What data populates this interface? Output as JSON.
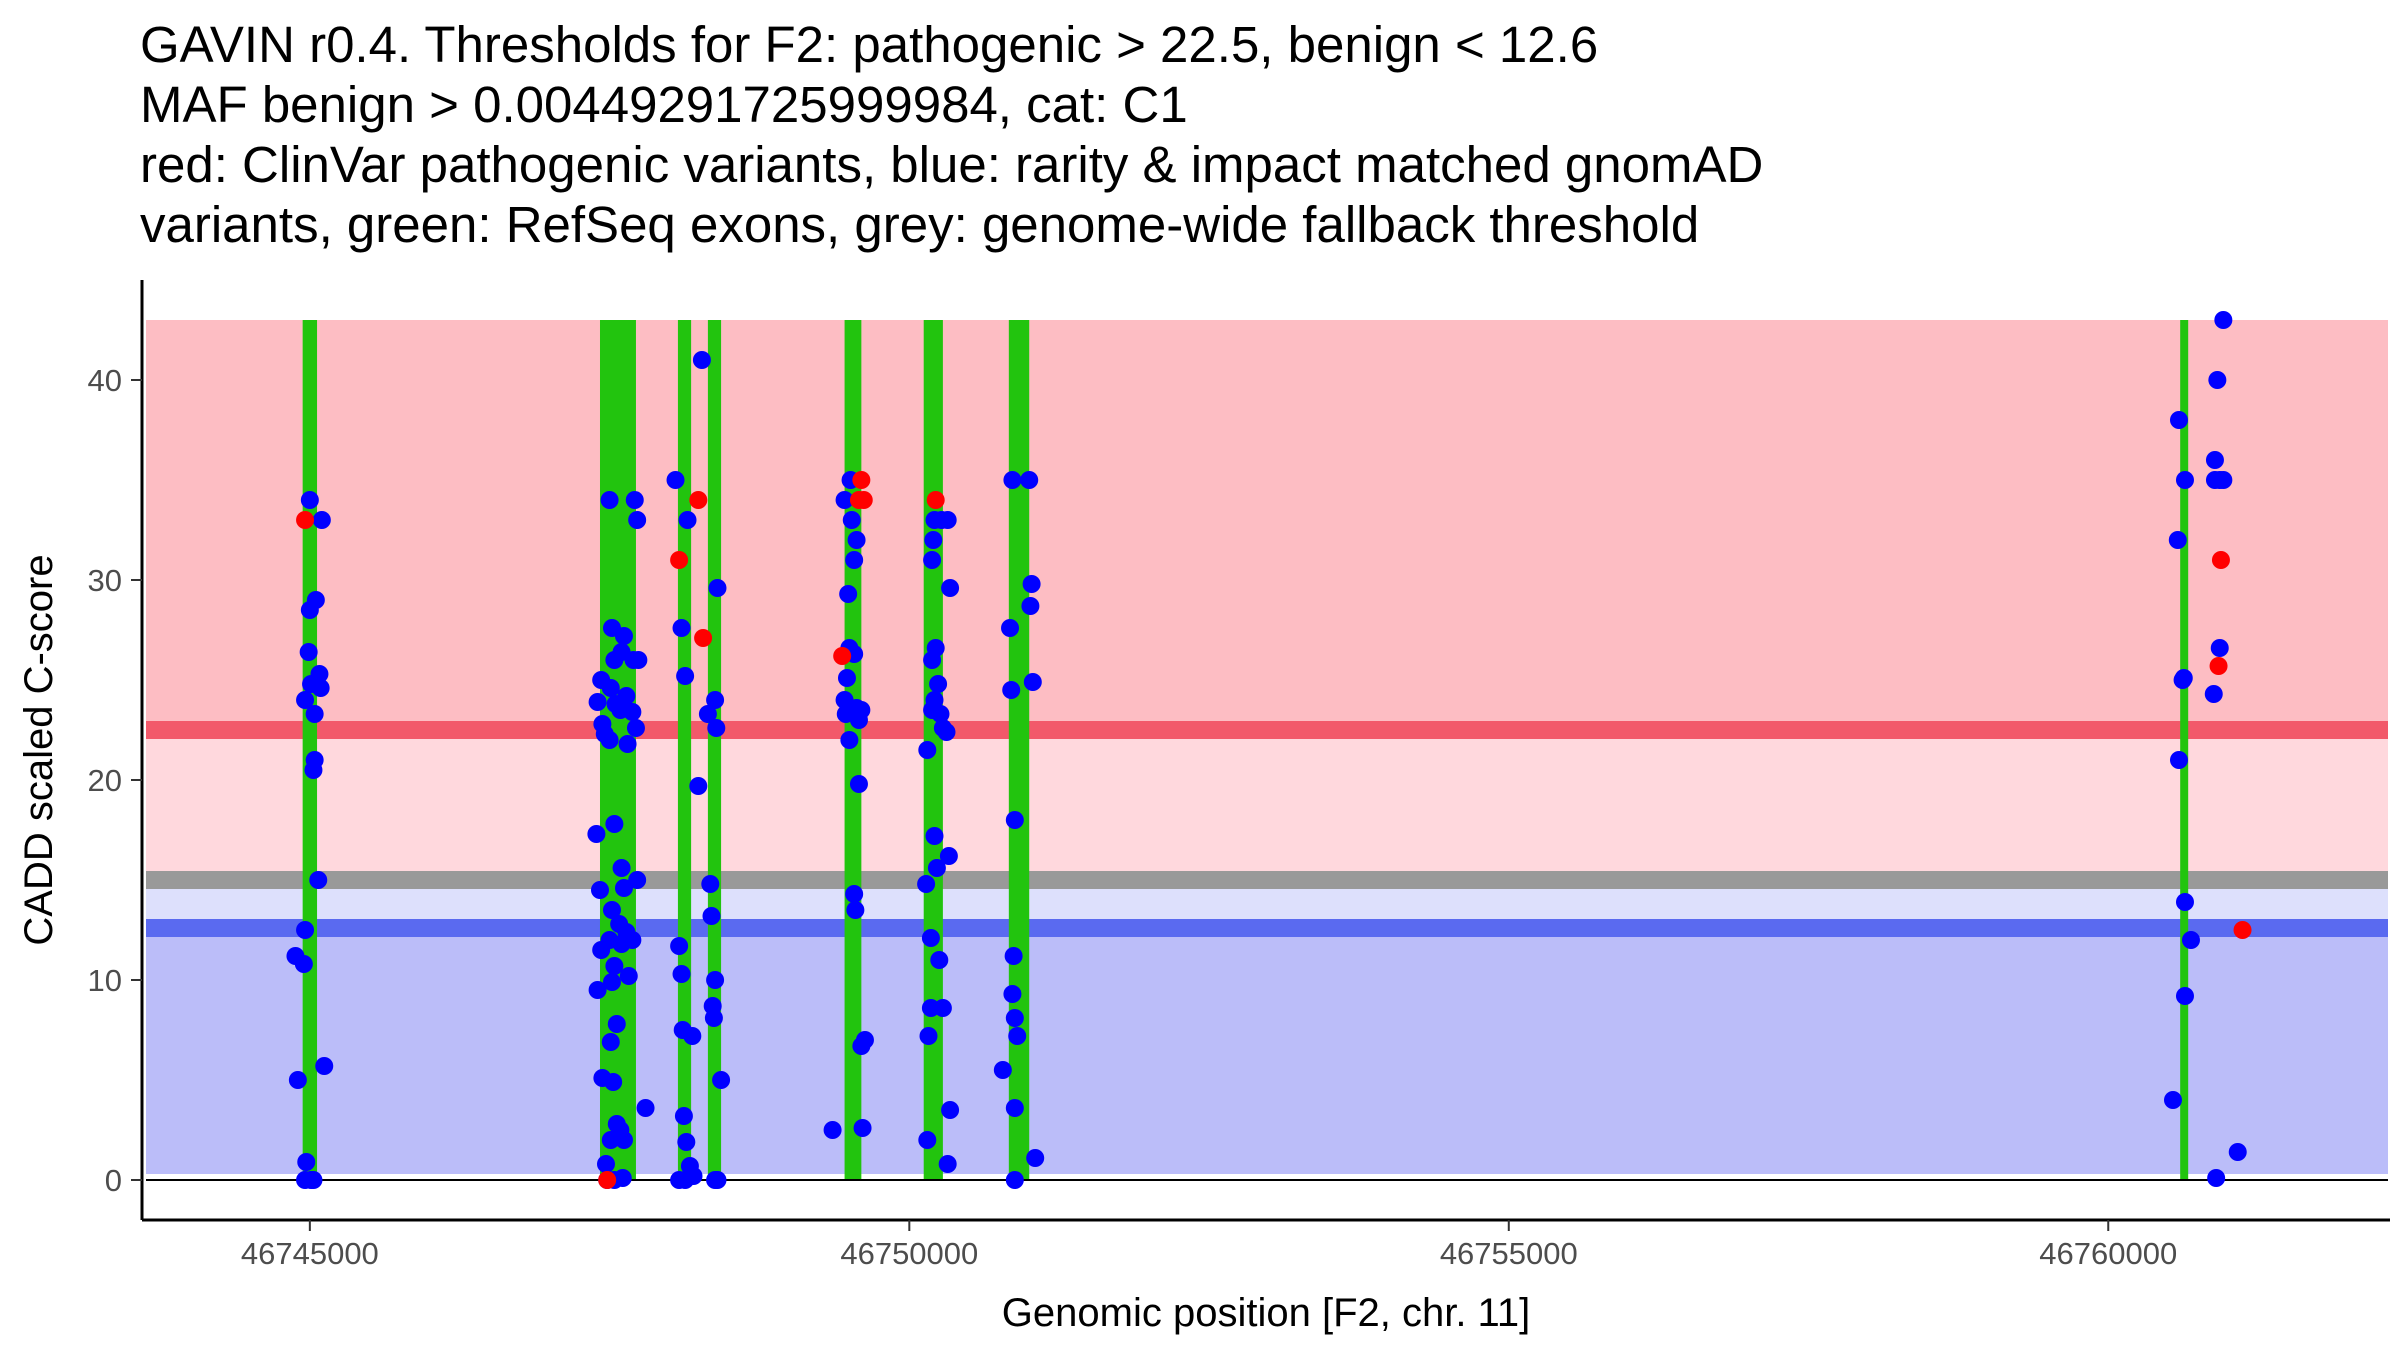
{
  "chart_data": {
    "type": "scatter",
    "title_lines": [
      "GAVIN r0.4. Thresholds for F2: pathogenic > 22.5, benign < 12.6",
      "MAF benign > 0.00449291725999984, cat: C1",
      "red: ClinVar pathogenic variants, blue: rarity & impact matched gnomAD",
      "variants, green: RefSeq exons, grey: genome-wide fallback threshold"
    ],
    "xlabel": "Genomic position [F2, chr. 11]",
    "ylabel": "CADD scaled C-score",
    "xlim": [
      46743600,
      46762350
    ],
    "ylim": [
      -2,
      45
    ],
    "x_ticks": [
      46745000,
      46750000,
      46755000,
      46760000
    ],
    "x_tick_labels": [
      "46745000",
      "46750000",
      "46755000",
      "46760000"
    ],
    "y_ticks": [
      0,
      10,
      20,
      30,
      40
    ],
    "y_tick_labels": [
      "0",
      "10",
      "20",
      "30",
      "40"
    ],
    "thresholds": {
      "pathogenic": 22.5,
      "benign": 12.6,
      "fallback": 15.0
    },
    "shaded_regions": [
      {
        "name": "pathogenic-region",
        "y0": 22.5,
        "y1": 43,
        "color": "#fdbdc3"
      },
      {
        "name": "pathogenic-margin-region",
        "y0": 15.0,
        "y1": 22.5,
        "color": "#ffd8dd"
      },
      {
        "name": "benign-margin-region",
        "y0": 12.6,
        "y1": 15.0,
        "color": "#dde0fc"
      },
      {
        "name": "benign-region",
        "y0": 0.3,
        "y1": 12.6,
        "color": "#bbbdf9"
      }
    ],
    "threshold_lines": [
      {
        "name": "pathogenic-threshold-line",
        "y": 22.5,
        "color": "#f2596a"
      },
      {
        "name": "fallback-threshold-line",
        "y": 15.0,
        "color": "#999999"
      },
      {
        "name": "benign-threshold-line",
        "y": 12.6,
        "color": "#5a6af0"
      }
    ],
    "exons": [
      {
        "start": 46744940,
        "end": 46745060
      },
      {
        "start": 46747420,
        "end": 46747720
      },
      {
        "start": 46748070,
        "end": 46748180
      },
      {
        "start": 46748320,
        "end": 46748430
      },
      {
        "start": 46749460,
        "end": 46749600
      },
      {
        "start": 46750120,
        "end": 46750280
      },
      {
        "start": 46750830,
        "end": 46751000
      },
      {
        "start": 46760600,
        "end": 46760660
      }
    ],
    "series": [
      {
        "name": "gnomAD variants",
        "color": "#0000ff",
        "points": [
          [
            46744900,
            5.0
          ],
          [
            46744880,
            11.2
          ],
          [
            46744950,
            10.8
          ],
          [
            46744960,
            12.5
          ],
          [
            46744970,
            0.9
          ],
          [
            46744960,
            0.0
          ],
          [
            46745010,
            0.0
          ],
          [
            46745030,
            0.0
          ],
          [
            46745000,
            34.0
          ],
          [
            46744990,
            26.4
          ],
          [
            46745000,
            28.5
          ],
          [
            46745050,
            29.0
          ],
          [
            46744960,
            24.0
          ],
          [
            46745010,
            24.8
          ],
          [
            46745040,
            23.3
          ],
          [
            46745090,
            24.6
          ],
          [
            46745080,
            25.3
          ],
          [
            46745100,
            33.0
          ],
          [
            46745040,
            21.0
          ],
          [
            46745030,
            20.5
          ],
          [
            46745070,
            15.0
          ],
          [
            46745120,
            5.7
          ],
          [
            46747400,
            23.9
          ],
          [
            46747430,
            25.0
          ],
          [
            46747440,
            22.8
          ],
          [
            46747460,
            22.3
          ],
          [
            46747390,
            17.3
          ],
          [
            46747420,
            14.5
          ],
          [
            46747430,
            11.5
          ],
          [
            46747400,
            9.5
          ],
          [
            46747440,
            5.1
          ],
          [
            46747470,
            0.8
          ],
          [
            46747480,
            0.0
          ],
          [
            46747500,
            34.0
          ],
          [
            46747520,
            27.6
          ],
          [
            46747540,
            26.0
          ],
          [
            46747510,
            24.6
          ],
          [
            46747550,
            23.8
          ],
          [
            46747500,
            22.0
          ],
          [
            46747540,
            17.8
          ],
          [
            46747520,
            13.5
          ],
          [
            46747500,
            12.0
          ],
          [
            46747540,
            10.7
          ],
          [
            46747520,
            9.9
          ],
          [
            46747560,
            7.8
          ],
          [
            46747510,
            6.9
          ],
          [
            46747530,
            4.9
          ],
          [
            46747560,
            2.8
          ],
          [
            46747510,
            2.0
          ],
          [
            46747540,
            0.0
          ],
          [
            46747600,
            26.4
          ],
          [
            46747620,
            27.2
          ],
          [
            46747640,
            24.2
          ],
          [
            46747590,
            23.5
          ],
          [
            46747650,
            21.8
          ],
          [
            46747600,
            15.6
          ],
          [
            46747620,
            14.6
          ],
          [
            46747580,
            12.8
          ],
          [
            46747640,
            12.4
          ],
          [
            46747600,
            11.8
          ],
          [
            46747660,
            10.2
          ],
          [
            46747590,
            2.5
          ],
          [
            46747620,
            2.0
          ],
          [
            46747610,
            0.1
          ],
          [
            46747710,
            34.0
          ],
          [
            46747730,
            33.0
          ],
          [
            46747700,
            26.0
          ],
          [
            46747740,
            26.0
          ],
          [
            46747690,
            23.4
          ],
          [
            46747720,
            22.6
          ],
          [
            46747730,
            15.0
          ],
          [
            46747690,
            12.0
          ],
          [
            46747800,
            3.6
          ],
          [
            46748050,
            35.0
          ],
          [
            46748080,
            11.7
          ],
          [
            46748100,
            27.6
          ],
          [
            46748130,
            25.2
          ],
          [
            46748150,
            33.0
          ],
          [
            46748100,
            10.3
          ],
          [
            46748110,
            7.5
          ],
          [
            46748120,
            3.2
          ],
          [
            46748140,
            1.9
          ],
          [
            46748130,
            0.0
          ],
          [
            46748080,
            0.0
          ],
          [
            46748170,
            0.7
          ],
          [
            46748190,
            7.2
          ],
          [
            46748200,
            0.2
          ],
          [
            46748240,
            19.7
          ],
          [
            46748270,
            41.0
          ],
          [
            46748320,
            23.3
          ],
          [
            46748340,
            14.8
          ],
          [
            46748350,
            13.2
          ],
          [
            46748360,
            8.7
          ],
          [
            46748370,
            8.1
          ],
          [
            46748380,
            24.0
          ],
          [
            46748390,
            22.6
          ],
          [
            46748400,
            29.6
          ],
          [
            46748380,
            10.0
          ],
          [
            46748430,
            5.0
          ],
          [
            46748380,
            0.0
          ],
          [
            46748400,
            0.0
          ],
          [
            46749360,
            2.5
          ],
          [
            46749460,
            34.0
          ],
          [
            46749490,
            29.3
          ],
          [
            46749480,
            25.1
          ],
          [
            46749460,
            24.0
          ],
          [
            46749470,
            23.3
          ],
          [
            46749500,
            22.0
          ],
          [
            46749510,
            35.0
          ],
          [
            46749520,
            33.0
          ],
          [
            46749540,
            31.0
          ],
          [
            46749560,
            32.0
          ],
          [
            46749500,
            26.6
          ],
          [
            46749540,
            26.3
          ],
          [
            46749560,
            23.6
          ],
          [
            46749580,
            23.0
          ],
          [
            46749600,
            23.5
          ],
          [
            46749580,
            19.8
          ],
          [
            46749540,
            14.3
          ],
          [
            46749550,
            13.5
          ],
          [
            46749600,
            6.7
          ],
          [
            46749630,
            7.0
          ],
          [
            46749610,
            2.6
          ],
          [
            46750150,
            21.5
          ],
          [
            46750140,
            14.8
          ],
          [
            46750180,
            12.1
          ],
          [
            46750180,
            8.6
          ],
          [
            46750160,
            7.2
          ],
          [
            46750150,
            2.0
          ],
          [
            46750190,
            31.0
          ],
          [
            46750210,
            33.0
          ],
          [
            46750200,
            32.0
          ],
          [
            46750190,
            26.0
          ],
          [
            46750220,
            26.6
          ],
          [
            46750210,
            24.0
          ],
          [
            46750240,
            24.8
          ],
          [
            46750190,
            23.5
          ],
          [
            46750260,
            23.3
          ],
          [
            46750280,
            22.6
          ],
          [
            46750310,
            22.4
          ],
          [
            46750210,
            17.2
          ],
          [
            46750230,
            15.6
          ],
          [
            46750250,
            11.0
          ],
          [
            46750280,
            8.6
          ],
          [
            46750270,
            33.0
          ],
          [
            46750320,
            33.0
          ],
          [
            46750340,
            29.6
          ],
          [
            46750330,
            16.2
          ],
          [
            46750340,
            3.5
          ],
          [
            46750320,
            0.8
          ],
          [
            46750780,
            5.5
          ],
          [
            46750860,
            35.0
          ],
          [
            46750840,
            27.6
          ],
          [
            46750850,
            24.5
          ],
          [
            46750880,
            18.0
          ],
          [
            46750870,
            11.2
          ],
          [
            46750860,
            9.3
          ],
          [
            46750880,
            8.1
          ],
          [
            46750900,
            7.2
          ],
          [
            46750880,
            3.6
          ],
          [
            46750880,
            0.0
          ],
          [
            46751000,
            35.0
          ],
          [
            46751020,
            29.8
          ],
          [
            46751010,
            28.7
          ],
          [
            46751030,
            24.9
          ],
          [
            46751050,
            1.1
          ],
          [
            46760540,
            4.0
          ],
          [
            46760590,
            38.0
          ],
          [
            46760640,
            35.0
          ],
          [
            46760580,
            32.0
          ],
          [
            46760630,
            25.1
          ],
          [
            46760620,
            25.0
          ],
          [
            46760590,
            21.0
          ],
          [
            46760640,
            13.9
          ],
          [
            46760640,
            9.2
          ],
          [
            46760690,
            12.0
          ],
          [
            46760960,
            43.0
          ],
          [
            46760910,
            40.0
          ],
          [
            46760890,
            36.0
          ],
          [
            46760890,
            35.0
          ],
          [
            46760930,
            35.0
          ],
          [
            46760960,
            35.0
          ],
          [
            46760930,
            26.6
          ],
          [
            46760880,
            24.3
          ],
          [
            46760900,
            0.1
          ],
          [
            46761080,
            1.4
          ]
        ]
      },
      {
        "name": "ClinVar pathogenic variants",
        "color": "#ff0000",
        "points": [
          [
            46744960,
            33.0
          ],
          [
            46747480,
            0.0
          ],
          [
            46748080,
            31.0
          ],
          [
            46748240,
            34.0
          ],
          [
            46748280,
            27.1
          ],
          [
            46749440,
            26.2
          ],
          [
            46749600,
            35.0
          ],
          [
            46749620,
            34.0
          ],
          [
            46749580,
            34.0
          ],
          [
            46750220,
            34.0
          ],
          [
            46760940,
            31.0
          ],
          [
            46760920,
            25.7
          ],
          [
            46761120,
            12.5
          ]
        ]
      }
    ]
  }
}
